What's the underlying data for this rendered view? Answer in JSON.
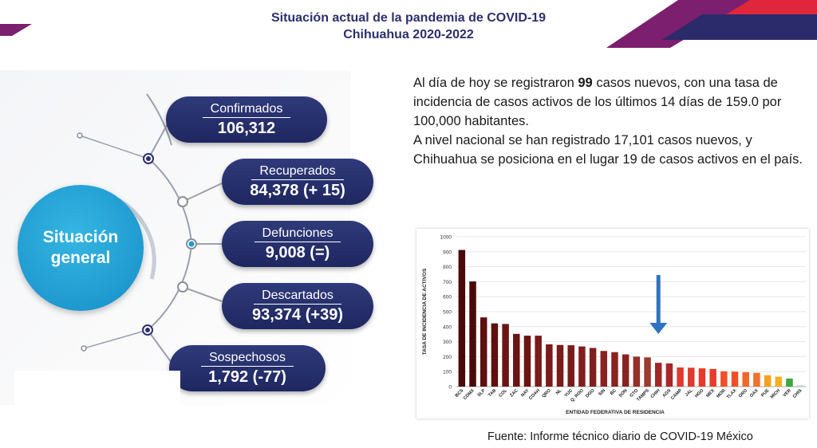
{
  "title": {
    "line1": "Situación actual de la pandemia de COVID-19",
    "line2": "Chihuahua 2020-2022"
  },
  "hub": {
    "line1": "Situación",
    "line2": "general"
  },
  "stats": [
    {
      "label": "Confirmados",
      "value": "106,312"
    },
    {
      "label": "Recuperados",
      "value": "84,378 (+ 15)"
    },
    {
      "label": "Defunciones",
      "value": "9,008 (=)"
    },
    {
      "label": "Descartados",
      "value": "93,374 (+39)"
    },
    {
      "label": "Sospechosos",
      "value": "1,792 (-77)"
    }
  ],
  "summary": {
    "p1_a": "Al día de hoy se registraron ",
    "p1_num": "99",
    "p1_b": " casos nuevos, con una tasa de incidencia de casos activos de los últimos 14 días de 159.0 por 100,000 habitantes.",
    "p2": "A nivel nacional se han registrado 17,101 casos nuevos, y Chihuahua se posiciona en el lugar 19 de casos activos en el país."
  },
  "source": "Fuente: Informe técnico diario de COVID-19 México",
  "colors": {
    "navy": "#2c2f6e",
    "cyan": "#1f9ad0",
    "arrow": "#2f74c0"
  },
  "chart_data": {
    "type": "bar",
    "xlabel": "ENTIDAD FEDERATIVA DE RESIDENCIA",
    "ylabel": "TASA DE INCIDENCIA DE ACTIVOS",
    "ylim": [
      0,
      1000
    ],
    "yticks": [
      0,
      100,
      200,
      300,
      400,
      500,
      600,
      700,
      800,
      900,
      1000
    ],
    "grid": true,
    "categories": [
      "BCS",
      "CDMX",
      "SLP",
      "TAB",
      "COL",
      "ZAC",
      "NAY",
      "COAH",
      "QRO",
      "NL",
      "YUC",
      "Q. ROO",
      "DGO",
      "SIN",
      "BC",
      "SON",
      "GTO",
      "TAMPS",
      "CHIH",
      "AGS",
      "CAMP",
      "JAL",
      "HGO",
      "MEX",
      "MOR",
      "TLAX",
      "GRO",
      "OAX",
      "PUE",
      "MICH",
      "VER",
      "CHIS"
    ],
    "values": [
      912,
      702,
      462,
      422,
      418,
      352,
      340,
      340,
      282,
      278,
      276,
      268,
      258,
      238,
      230,
      215,
      200,
      195,
      159,
      155,
      128,
      126,
      122,
      118,
      102,
      100,
      96,
      92,
      76,
      66,
      54,
      8
    ],
    "bar_colors": [
      "#4a0a0a",
      "#4a0a0a",
      "#5e1010",
      "#5e1010",
      "#6b1414",
      "#6b1414",
      "#6b1414",
      "#7a1a1a",
      "#7a1a1a",
      "#7a1a1a",
      "#7a1a1a",
      "#821d1d",
      "#821d1d",
      "#8a2222",
      "#8a2222",
      "#8a2222",
      "#94302a",
      "#9a3a30",
      "#a02828",
      "#a82828",
      "#e03a2e",
      "#e03a2e",
      "#e83a2a",
      "#e63d2a",
      "#f05028",
      "#f05028",
      "#f2672a",
      "#f2702a",
      "#f5a021",
      "#f5b021",
      "#3aa83a",
      "#a8d8d8"
    ],
    "highlight": "CHIH"
  }
}
